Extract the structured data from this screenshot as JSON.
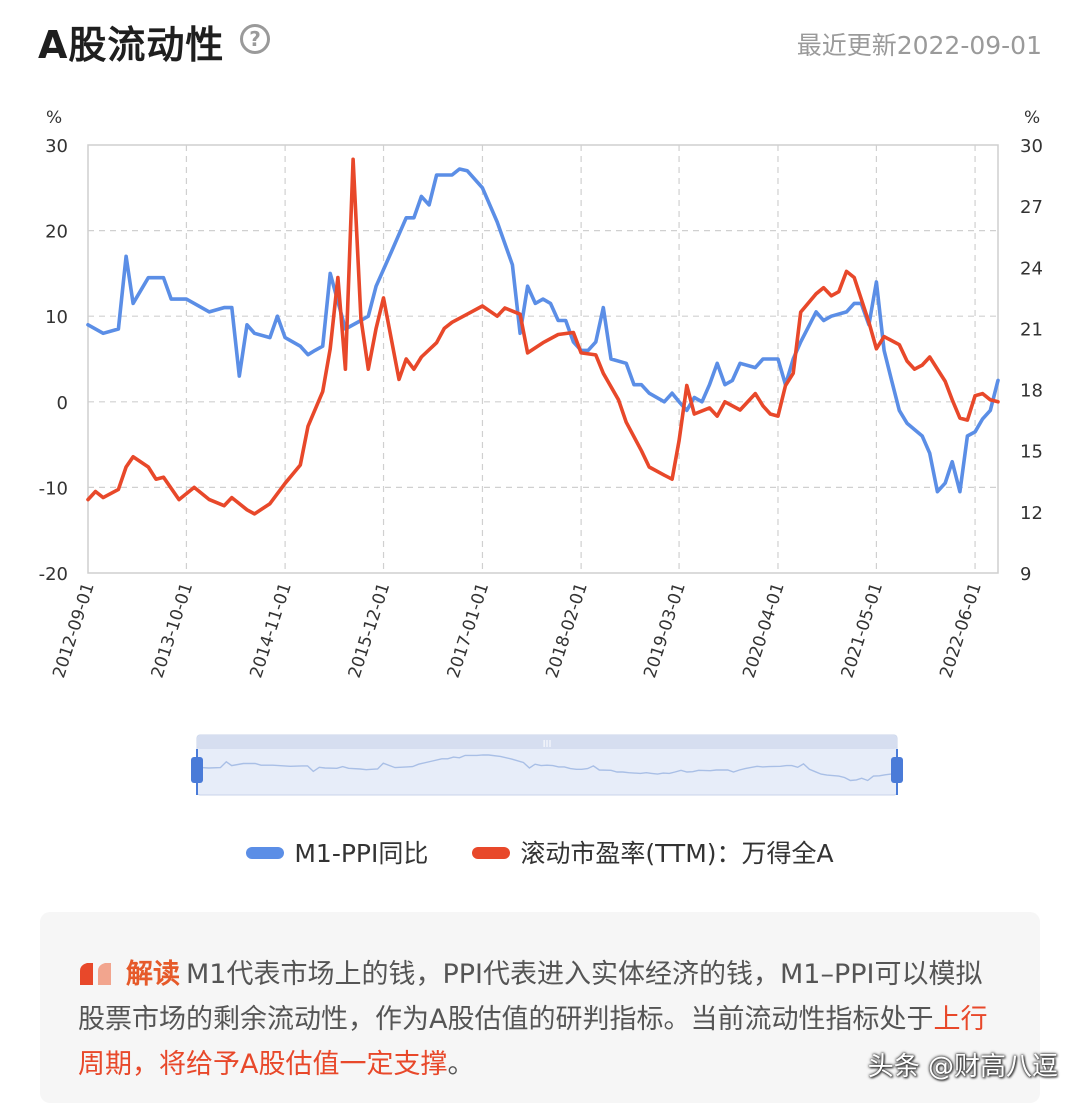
{
  "header": {
    "title": "A股流动性",
    "help_symbol": "?",
    "updated": "最近更新2022-09-01"
  },
  "colors": {
    "m1_ppi": "#5b8ee6",
    "pe_ttm": "#e8482a",
    "grid": "#d0d0d0",
    "axis_text": "#333333"
  },
  "chart_data": {
    "type": "line",
    "left_axis": {
      "unit": "%",
      "ylim": [
        -20,
        30
      ],
      "ticks": [
        "30",
        "20",
        "10",
        "0",
        "-10",
        "-20"
      ]
    },
    "right_axis": {
      "unit": "%",
      "ylim": [
        9,
        30
      ],
      "ticks": [
        "30",
        "27",
        "24",
        "21",
        "18",
        "15",
        "12",
        "9"
      ]
    },
    "xlim": [
      "2012-09-01",
      "2022-09-01"
    ],
    "x_tick_labels": [
      "2012-09-01",
      "2013-10-01",
      "2014-11-01",
      "2015-12-01",
      "2017-01-01",
      "2018-02-01",
      "2019-03-01",
      "2020-04-01",
      "2021-05-01",
      "2022-06-01"
    ],
    "grid": true,
    "legend_position": "bottom-center",
    "series": [
      {
        "name": "M1-PPI同比",
        "axis": "left",
        "color_key": "m1_ppi",
        "points": [
          [
            "2012-09-01",
            9
          ],
          [
            "2012-11-01",
            8
          ],
          [
            "2013-01-01",
            8.5
          ],
          [
            "2013-02-01",
            17
          ],
          [
            "2013-03-01",
            11.5
          ],
          [
            "2013-05-01",
            14.5
          ],
          [
            "2013-07-01",
            14.5
          ],
          [
            "2013-08-01",
            12
          ],
          [
            "2013-10-01",
            12
          ],
          [
            "2013-11-01",
            11.5
          ],
          [
            "2014-01-01",
            10.5
          ],
          [
            "2014-03-01",
            11
          ],
          [
            "2014-04-01",
            11
          ],
          [
            "2014-05-01",
            3
          ],
          [
            "2014-06-01",
            9
          ],
          [
            "2014-07-01",
            8
          ],
          [
            "2014-09-01",
            7.5
          ],
          [
            "2014-10-01",
            10
          ],
          [
            "2014-11-01",
            7.5
          ],
          [
            "2015-01-01",
            6.5
          ],
          [
            "2015-02-01",
            5.5
          ],
          [
            "2015-03-01",
            6
          ],
          [
            "2015-04-01",
            6.5
          ],
          [
            "2015-05-01",
            15
          ],
          [
            "2015-07-01",
            8.5
          ],
          [
            "2015-09-01",
            9.5
          ],
          [
            "2015-10-01",
            10
          ],
          [
            "2015-11-01",
            13.5
          ],
          [
            "2016-01-01",
            17.5
          ],
          [
            "2016-03-01",
            21.5
          ],
          [
            "2016-04-01",
            21.5
          ],
          [
            "2016-05-01",
            24
          ],
          [
            "2016-06-01",
            23
          ],
          [
            "2016-07-01",
            26.5
          ],
          [
            "2016-09-01",
            26.5
          ],
          [
            "2016-10-01",
            27.2
          ],
          [
            "2016-11-01",
            27
          ],
          [
            "2017-01-01",
            25
          ],
          [
            "2017-03-01",
            21
          ],
          [
            "2017-05-01",
            16
          ],
          [
            "2017-06-01",
            8
          ],
          [
            "2017-07-01",
            13.5
          ],
          [
            "2017-08-01",
            11.5
          ],
          [
            "2017-09-01",
            12
          ],
          [
            "2017-10-01",
            11.5
          ],
          [
            "2017-11-01",
            9.5
          ],
          [
            "2017-12-01",
            9.5
          ],
          [
            "2018-01-01",
            7
          ],
          [
            "2018-02-01",
            6
          ],
          [
            "2018-03-01",
            6
          ],
          [
            "2018-04-01",
            7
          ],
          [
            "2018-05-01",
            11
          ],
          [
            "2018-06-01",
            5
          ],
          [
            "2018-08-01",
            4.5
          ],
          [
            "2018-09-01",
            2
          ],
          [
            "2018-10-01",
            2
          ],
          [
            "2018-11-01",
            1
          ],
          [
            "2019-01-01",
            0
          ],
          [
            "2019-02-01",
            1
          ],
          [
            "2019-03-01",
            0
          ],
          [
            "2019-04-01",
            -1
          ],
          [
            "2019-05-01",
            0.5
          ],
          [
            "2019-06-01",
            0
          ],
          [
            "2019-07-01",
            2
          ],
          [
            "2019-08-01",
            4.5
          ],
          [
            "2019-09-01",
            2
          ],
          [
            "2019-10-01",
            2.5
          ],
          [
            "2019-11-01",
            4.5
          ],
          [
            "2020-01-01",
            4
          ],
          [
            "2020-02-01",
            5
          ],
          [
            "2020-03-01",
            5
          ],
          [
            "2020-04-01",
            5
          ],
          [
            "2020-05-01",
            2
          ],
          [
            "2020-06-01",
            5
          ],
          [
            "2020-07-01",
            7
          ],
          [
            "2020-09-01",
            10.5
          ],
          [
            "2020-10-01",
            9.5
          ],
          [
            "2020-11-01",
            10
          ],
          [
            "2021-01-01",
            10.5
          ],
          [
            "2021-02-01",
            11.5
          ],
          [
            "2021-03-01",
            11.5
          ],
          [
            "2021-04-01",
            9
          ],
          [
            "2021-05-01",
            14
          ],
          [
            "2021-06-01",
            6
          ],
          [
            "2021-07-01",
            2.5
          ],
          [
            "2021-08-01",
            -1
          ],
          [
            "2021-09-01",
            -2.5
          ],
          [
            "2021-11-01",
            -4
          ],
          [
            "2021-12-01",
            -6
          ],
          [
            "2022-01-01",
            -10.5
          ],
          [
            "2022-02-01",
            -9.5
          ],
          [
            "2022-03-01",
            -7
          ],
          [
            "2022-04-01",
            -10.5
          ],
          [
            "2022-05-01",
            -4
          ],
          [
            "2022-06-01",
            -3.5
          ],
          [
            "2022-07-01",
            -2
          ],
          [
            "2022-08-01",
            -1
          ],
          [
            "2022-09-01",
            2.5
          ]
        ]
      },
      {
        "name": "滚动市盈率(TTM)：万得全A",
        "axis": "right",
        "color_key": "pe_ttm",
        "points": [
          [
            "2012-09-01",
            12.6
          ],
          [
            "2012-10-01",
            13
          ],
          [
            "2012-11-01",
            12.7
          ],
          [
            "2013-01-01",
            13.1
          ],
          [
            "2013-02-01",
            14.2
          ],
          [
            "2013-03-01",
            14.7
          ],
          [
            "2013-05-01",
            14.2
          ],
          [
            "2013-06-01",
            13.6
          ],
          [
            "2013-07-01",
            13.7
          ],
          [
            "2013-09-01",
            12.6
          ],
          [
            "2013-11-01",
            13.2
          ],
          [
            "2014-01-01",
            12.6
          ],
          [
            "2014-03-01",
            12.3
          ],
          [
            "2014-04-01",
            12.7
          ],
          [
            "2014-06-01",
            12.1
          ],
          [
            "2014-07-01",
            11.9
          ],
          [
            "2014-09-01",
            12.4
          ],
          [
            "2014-11-01",
            13.4
          ],
          [
            "2015-01-01",
            14.3
          ],
          [
            "2015-02-01",
            16.2
          ],
          [
            "2015-04-01",
            17.9
          ],
          [
            "2015-05-01",
            20
          ],
          [
            "2015-06-01",
            23.5
          ],
          [
            "2015-07-01",
            19
          ],
          [
            "2015-08-01",
            29.3
          ],
          [
            "2015-09-01",
            21.5
          ],
          [
            "2015-10-01",
            19
          ],
          [
            "2015-11-01",
            21
          ],
          [
            "2015-12-01",
            22.5
          ],
          [
            "2016-02-01",
            18.5
          ],
          [
            "2016-03-01",
            19.5
          ],
          [
            "2016-04-01",
            19
          ],
          [
            "2016-05-01",
            19.6
          ],
          [
            "2016-07-01",
            20.3
          ],
          [
            "2016-08-01",
            21
          ],
          [
            "2016-09-01",
            21.3
          ],
          [
            "2016-11-01",
            21.7
          ],
          [
            "2017-01-01",
            22.1
          ],
          [
            "2017-03-01",
            21.6
          ],
          [
            "2017-04-01",
            22
          ],
          [
            "2017-06-01",
            21.7
          ],
          [
            "2017-07-01",
            19.8
          ],
          [
            "2017-09-01",
            20.3
          ],
          [
            "2017-11-01",
            20.7
          ],
          [
            "2018-01-01",
            20.8
          ],
          [
            "2018-02-01",
            19.8
          ],
          [
            "2018-04-01",
            19.7
          ],
          [
            "2018-05-01",
            18.8
          ],
          [
            "2018-07-01",
            17.5
          ],
          [
            "2018-08-01",
            16.4
          ],
          [
            "2018-10-01",
            15
          ],
          [
            "2018-11-01",
            14.2
          ],
          [
            "2019-01-01",
            13.8
          ],
          [
            "2019-02-01",
            13.6
          ],
          [
            "2019-03-01",
            15.5
          ],
          [
            "2019-04-01",
            18.2
          ],
          [
            "2019-05-01",
            16.8
          ],
          [
            "2019-07-01",
            17.1
          ],
          [
            "2019-08-01",
            16.7
          ],
          [
            "2019-09-01",
            17.4
          ],
          [
            "2019-11-01",
            17
          ],
          [
            "2020-01-01",
            17.8
          ],
          [
            "2020-02-01",
            17.2
          ],
          [
            "2020-03-01",
            16.8
          ],
          [
            "2020-04-01",
            16.7
          ],
          [
            "2020-05-01",
            18.2
          ],
          [
            "2020-06-01",
            18.8
          ],
          [
            "2020-07-01",
            21.8
          ],
          [
            "2020-09-01",
            22.7
          ],
          [
            "2020-10-01",
            23
          ],
          [
            "2020-11-01",
            22.6
          ],
          [
            "2020-12-01",
            22.8
          ],
          [
            "2021-01-01",
            23.8
          ],
          [
            "2021-02-01",
            23.5
          ],
          [
            "2021-04-01",
            21.3
          ],
          [
            "2021-05-01",
            20
          ],
          [
            "2021-06-01",
            20.6
          ],
          [
            "2021-08-01",
            20.2
          ],
          [
            "2021-09-01",
            19.4
          ],
          [
            "2021-10-01",
            19
          ],
          [
            "2021-11-01",
            19.2
          ],
          [
            "2021-12-01",
            19.6
          ],
          [
            "2022-02-01",
            18.4
          ],
          [
            "2022-03-01",
            17.5
          ],
          [
            "2022-04-01",
            16.6
          ],
          [
            "2022-05-01",
            16.5
          ],
          [
            "2022-06-01",
            17.7
          ],
          [
            "2022-07-01",
            17.8
          ],
          [
            "2022-08-01",
            17.5
          ],
          [
            "2022-09-01",
            17.4
          ]
        ]
      }
    ]
  },
  "zoom_slider": {
    "handle_symbol": "III"
  },
  "legend": {
    "m1_ppi": "M1-PPI同比",
    "pe_ttm": "滚动市盈率(TTM)：万得全A"
  },
  "note": {
    "label": "解读",
    "text_part1": "M1代表市场上的钱，PPI代表进入实体经济的钱，M1–PPI可以模拟股票市场的剩余流动性，作为A股估值的研判指标。当前流动性指标处于",
    "text_highlight": "上行周期，将给予A股估值一定支撑",
    "text_end": "。"
  },
  "watermark": "头条 @财高八逗"
}
